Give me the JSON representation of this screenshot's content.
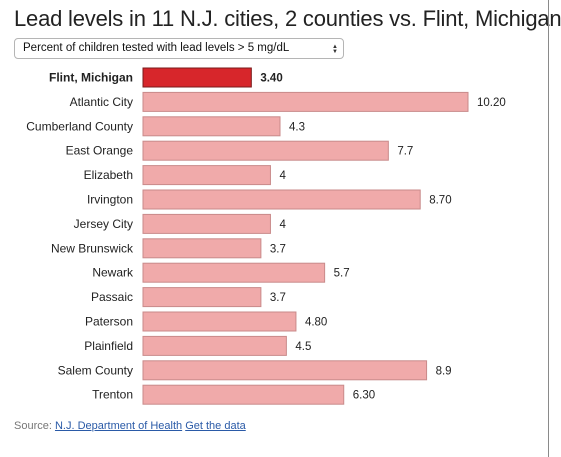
{
  "title": "Lead levels in 11 N.J. cities, 2 counties vs. Flint, Michigan",
  "selector": {
    "selected": "Percent of children tested with lead levels > 5 mg/dL",
    "arrow_icon": "updown-arrows-icon"
  },
  "chart_data": {
    "type": "bar",
    "orientation": "horizontal",
    "categories": [
      "Flint, Michigan",
      "Atlantic City",
      "Cumberland County",
      "East Orange",
      "Elizabeth",
      "Irvington",
      "Jersey City",
      "New Brunswick",
      "Newark",
      "Passaic",
      "Paterson",
      "Plainfield",
      "Salem County",
      "Trenton"
    ],
    "values": [
      3.4,
      10.2,
      4.3,
      7.7,
      4,
      8.7,
      4,
      3.7,
      5.7,
      3.7,
      4.8,
      4.5,
      8.9,
      6.3
    ],
    "value_labels": [
      "3.40",
      "10.20",
      "4.3",
      "7.7",
      "4",
      "8.70",
      "4",
      "3.7",
      "5.7",
      "3.7",
      "4.80",
      "4.5",
      "8.9",
      "6.30"
    ],
    "highlight": [
      "Flint, Michigan"
    ],
    "colors": {
      "default": "#f0aaaa",
      "default_border": "#c98a8a",
      "highlight": "#d7262b",
      "highlight_border": "#7a1b1b"
    },
    "xlim": [
      0,
      10.2
    ],
    "xlabel": "",
    "ylabel": "",
    "grid": false,
    "legend": "none"
  },
  "source": {
    "prefix": "Source: ",
    "department_link": "N.J. Department of Health",
    "data_link": "Get the data"
  }
}
